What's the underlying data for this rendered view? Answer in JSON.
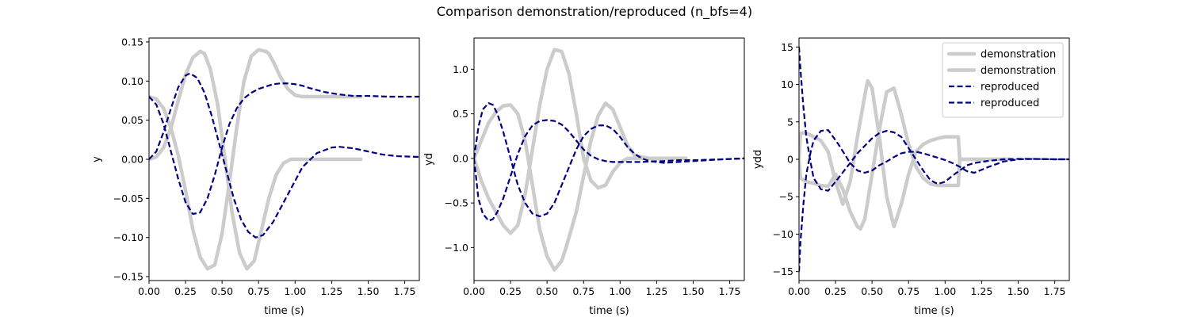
{
  "figure": {
    "title": "Comparison demonstration/reproduced  (n_bfs=4)"
  },
  "colors": {
    "demonstration": "#cccccc",
    "reproduced": "#000080"
  },
  "chart_data": [
    {
      "type": "line",
      "xlabel": "time (s)",
      "ylabel": "y",
      "xlim": [
        0,
        1.85
      ],
      "ylim": [
        -0.155,
        0.155
      ],
      "xticks": [
        0.0,
        0.25,
        0.5,
        0.75,
        1.0,
        1.25,
        1.5,
        1.75
      ],
      "xtick_labels": [
        "0.00",
        "0.25",
        "0.50",
        "0.75",
        "1.00",
        "1.25",
        "1.50",
        "1.75"
      ],
      "yticks": [
        -0.15,
        -0.1,
        -0.05,
        0.0,
        0.05,
        0.1,
        0.15
      ],
      "ytick_labels": [
        "−0.15",
        "−0.10",
        "−0.05",
        "0.00",
        "0.05",
        "0.10",
        "0.15"
      ],
      "series": [
        {
          "name": "demonstration",
          "style": "solid-thick-gray",
          "x": [
            0,
            0.05,
            0.1,
            0.15,
            0.2,
            0.25,
            0.3,
            0.35,
            0.38,
            0.42,
            0.47,
            0.52,
            0.57,
            0.62,
            0.67,
            0.72,
            0.77,
            0.82,
            0.87,
            0.92,
            0.97,
            1.02,
            1.07,
            1.12,
            1.2,
            1.3,
            1.45
          ],
          "y": [
            0,
            0.003,
            0.015,
            0.04,
            0.075,
            0.108,
            0.13,
            0.138,
            0.135,
            0.115,
            0.07,
            0.0,
            -0.07,
            -0.12,
            -0.14,
            -0.13,
            -0.09,
            -0.05,
            -0.02,
            -0.005,
            0.0,
            0.0,
            0.0,
            0.0,
            0.0,
            0.0,
            0.0
          ]
        },
        {
          "name": "demonstration",
          "style": "solid-thick-gray",
          "x": [
            0,
            0.05,
            0.1,
            0.15,
            0.2,
            0.25,
            0.3,
            0.35,
            0.4,
            0.45,
            0.5,
            0.55,
            0.6,
            0.65,
            0.7,
            0.75,
            0.8,
            0.82,
            0.85,
            0.9,
            0.95,
            1.0,
            1.05,
            1.1,
            1.2,
            1.3,
            1.45
          ],
          "y": [
            0.08,
            0.077,
            0.065,
            0.04,
            0.005,
            -0.04,
            -0.09,
            -0.125,
            -0.14,
            -0.135,
            -0.095,
            -0.03,
            0.04,
            0.1,
            0.132,
            0.14,
            0.138,
            0.135,
            0.125,
            0.105,
            0.09,
            0.082,
            0.08,
            0.08,
            0.08,
            0.08,
            0.08
          ]
        },
        {
          "name": "reproduced",
          "style": "dashed-navy",
          "x": [
            0,
            0.05,
            0.1,
            0.15,
            0.2,
            0.25,
            0.28,
            0.33,
            0.38,
            0.43,
            0.48,
            0.53,
            0.58,
            0.63,
            0.68,
            0.73,
            0.78,
            0.85,
            0.95,
            1.05,
            1.15,
            1.25,
            1.3,
            1.4,
            1.5,
            1.6,
            1.7,
            1.85
          ],
          "y": [
            0,
            0.01,
            0.035,
            0.065,
            0.092,
            0.107,
            0.11,
            0.104,
            0.085,
            0.055,
            0.02,
            -0.015,
            -0.05,
            -0.077,
            -0.093,
            -0.1,
            -0.097,
            -0.08,
            -0.045,
            -0.01,
            0.008,
            0.015,
            0.016,
            0.014,
            0.01,
            0.006,
            0.004,
            0.003
          ]
        },
        {
          "name": "reproduced",
          "style": "dashed-navy",
          "x": [
            0,
            0.05,
            0.1,
            0.15,
            0.2,
            0.25,
            0.3,
            0.35,
            0.4,
            0.45,
            0.5,
            0.55,
            0.6,
            0.65,
            0.7,
            0.75,
            0.8,
            0.85,
            0.9,
            0.95,
            1.0,
            1.05,
            1.1,
            1.2,
            1.3,
            1.4,
            1.5,
            1.65,
            1.85
          ],
          "y": [
            0.08,
            0.07,
            0.045,
            0.01,
            -0.025,
            -0.055,
            -0.07,
            -0.068,
            -0.05,
            -0.02,
            0.015,
            0.045,
            0.065,
            0.078,
            0.085,
            0.09,
            0.093,
            0.096,
            0.097,
            0.097,
            0.096,
            0.094,
            0.091,
            0.086,
            0.083,
            0.081,
            0.081,
            0.08,
            0.08
          ]
        }
      ]
    },
    {
      "type": "line",
      "xlabel": "time (s)",
      "ylabel": "yd",
      "xlim": [
        0,
        1.85
      ],
      "ylim": [
        -1.37,
        1.35
      ],
      "xticks": [
        0.0,
        0.25,
        0.5,
        0.75,
        1.0,
        1.25,
        1.5,
        1.75
      ],
      "xtick_labels": [
        "0.00",
        "0.25",
        "0.50",
        "0.75",
        "1.00",
        "1.25",
        "1.50",
        "1.75"
      ],
      "yticks": [
        -1.0,
        -0.5,
        0.0,
        0.5,
        1.0
      ],
      "ytick_labels": [
        "−1.0",
        "−0.5",
        "0.0",
        "0.5",
        "1.0"
      ],
      "series": [
        {
          "name": "demonstration",
          "style": "solid-thick-gray",
          "x": [
            0,
            0.05,
            0.1,
            0.15,
            0.2,
            0.25,
            0.3,
            0.35,
            0.4,
            0.45,
            0.5,
            0.55,
            0.6,
            0.63,
            0.7,
            0.75,
            0.8,
            0.85,
            0.9,
            0.95,
            1.0,
            1.05,
            1.1,
            1.2,
            1.3,
            1.45
          ],
          "y": [
            0,
            0.2,
            0.4,
            0.52,
            0.59,
            0.6,
            0.5,
            0.2,
            -0.3,
            -0.8,
            -1.1,
            -1.25,
            -1.15,
            -1.0,
            -0.6,
            -0.2,
            0.2,
            0.48,
            0.62,
            0.55,
            0.35,
            0.15,
            0.03,
            0.0,
            0.0,
            0.0
          ]
        },
        {
          "name": "demonstration",
          "style": "solid-thick-gray",
          "x": [
            0,
            0.05,
            0.1,
            0.15,
            0.2,
            0.25,
            0.3,
            0.35,
            0.4,
            0.45,
            0.5,
            0.55,
            0.6,
            0.65,
            0.7,
            0.75,
            0.8,
            0.85,
            0.9,
            0.95,
            1.0,
            1.05,
            1.1,
            1.2,
            1.3,
            1.45
          ],
          "y": [
            0,
            -0.25,
            -0.45,
            -0.6,
            -0.75,
            -0.84,
            -0.75,
            -0.4,
            0.1,
            0.6,
            1.0,
            1.22,
            1.2,
            0.95,
            0.5,
            0.0,
            -0.25,
            -0.33,
            -0.3,
            -0.15,
            -0.05,
            0.0,
            0.0,
            0.0,
            0.0,
            0.0
          ]
        },
        {
          "name": "reproduced",
          "style": "dashed-navy",
          "x": [
            0,
            0.03,
            0.06,
            0.1,
            0.13,
            0.16,
            0.2,
            0.25,
            0.3,
            0.35,
            0.4,
            0.45,
            0.5,
            0.55,
            0.6,
            0.65,
            0.7,
            0.75,
            0.8,
            0.85,
            0.9,
            0.95,
            1.0,
            1.05,
            1.1,
            1.15,
            1.2,
            1.3,
            1.4,
            1.5,
            1.6,
            1.7,
            1.85
          ],
          "y": [
            0,
            0.35,
            0.55,
            0.62,
            0.6,
            0.5,
            0.3,
            0.0,
            -0.3,
            -0.5,
            -0.62,
            -0.65,
            -0.62,
            -0.5,
            -0.3,
            -0.1,
            0.1,
            0.25,
            0.33,
            0.37,
            0.37,
            0.33,
            0.24,
            0.13,
            0.05,
            0.0,
            -0.03,
            -0.05,
            -0.04,
            -0.03,
            -0.02,
            -0.01,
            0.0
          ]
        },
        {
          "name": "reproduced",
          "style": "dashed-navy",
          "x": [
            0,
            0.03,
            0.06,
            0.1,
            0.13,
            0.16,
            0.2,
            0.25,
            0.3,
            0.35,
            0.4,
            0.45,
            0.5,
            0.55,
            0.6,
            0.65,
            0.7,
            0.75,
            0.8,
            0.85,
            0.9,
            0.95,
            1.0,
            1.05,
            1.1,
            1.15,
            1.2,
            1.3,
            1.4,
            1.5,
            1.6,
            1.7,
            1.85
          ],
          "y": [
            0,
            -0.45,
            -0.62,
            -0.7,
            -0.68,
            -0.6,
            -0.45,
            -0.2,
            0.05,
            0.25,
            0.37,
            0.42,
            0.43,
            0.42,
            0.38,
            0.3,
            0.2,
            0.1,
            0.03,
            -0.01,
            -0.03,
            -0.04,
            -0.04,
            -0.04,
            -0.04,
            -0.04,
            -0.035,
            -0.03,
            -0.02,
            -0.02,
            -0.015,
            -0.01,
            0.0
          ]
        }
      ]
    },
    {
      "type": "line",
      "xlabel": "time (s)",
      "ylabel": "ydd",
      "xlim": [
        0,
        1.85
      ],
      "ylim": [
        -16.2,
        16.2
      ],
      "xticks": [
        0.0,
        0.25,
        0.5,
        0.75,
        1.0,
        1.25,
        1.5,
        1.75
      ],
      "xtick_labels": [
        "0.00",
        "0.25",
        "0.50",
        "0.75",
        "1.00",
        "1.25",
        "1.50",
        "1.75"
      ],
      "yticks": [
        -15,
        -10,
        -5,
        0,
        5,
        10,
        15
      ],
      "ytick_labels": [
        "−15",
        "−10",
        "−5",
        "0",
        "5",
        "10",
        "15"
      ],
      "legend": {
        "location": "upper right",
        "entries": [
          {
            "label": "demonstration",
            "style": "solid-thick-gray"
          },
          {
            "label": "demonstration",
            "style": "solid-thick-gray"
          },
          {
            "label": "reproduced",
            "style": "dashed-navy"
          },
          {
            "label": "reproduced",
            "style": "dashed-navy"
          }
        ]
      },
      "series": [
        {
          "name": "demonstration",
          "style": "solid-thick-gray",
          "x": [
            0,
            0.01,
            0.05,
            0.1,
            0.15,
            0.2,
            0.25,
            0.3,
            0.35,
            0.4,
            0.42,
            0.45,
            0.5,
            0.55,
            0.6,
            0.65,
            0.7,
            0.75,
            0.8,
            0.85,
            0.9,
            0.95,
            1.0,
            1.05,
            1.09,
            1.1,
            1.15,
            1.2,
            1.3,
            1.45
          ],
          "y": [
            0,
            -2.5,
            -3.0,
            -3.2,
            -3.5,
            -3.6,
            -2.0,
            -4.0,
            -7.0,
            -9.0,
            -9.3,
            -8.0,
            -2.0,
            4.0,
            9.0,
            9.5,
            6.0,
            2.0,
            -1.0,
            -2.5,
            -3.3,
            -3.5,
            -3.5,
            -3.5,
            -3.5,
            0.0,
            0.0,
            0.0,
            0.0,
            0.0
          ]
        },
        {
          "name": "demonstration",
          "style": "solid-thick-gray",
          "x": [
            0,
            0.01,
            0.05,
            0.1,
            0.15,
            0.2,
            0.25,
            0.3,
            0.35,
            0.4,
            0.45,
            0.47,
            0.5,
            0.55,
            0.6,
            0.65,
            0.7,
            0.75,
            0.8,
            0.85,
            0.9,
            0.95,
            1.0,
            1.05,
            1.09,
            1.1,
            1.15,
            1.2,
            1.3,
            1.45
          ],
          "y": [
            0,
            3.5,
            3.5,
            3.0,
            2.5,
            1.0,
            -3.0,
            -6.0,
            -3.0,
            3.0,
            8.5,
            10.5,
            9.5,
            3.0,
            -5.0,
            -9.0,
            -6.0,
            -2.0,
            1.0,
            2.0,
            2.5,
            2.8,
            3.0,
            3.0,
            3.0,
            0.0,
            0.0,
            0.0,
            0.0,
            0.0
          ]
        },
        {
          "name": "reproduced",
          "style": "dashed-navy",
          "x": [
            0,
            0.01,
            0.03,
            0.05,
            0.08,
            0.1,
            0.15,
            0.2,
            0.27,
            0.35,
            0.4,
            0.45,
            0.5,
            0.55,
            0.6,
            0.65,
            0.7,
            0.75,
            0.8,
            0.85,
            0.9,
            0.95,
            1.0,
            1.05,
            1.1,
            1.15,
            1.2,
            1.3,
            1.4,
            1.5,
            1.6,
            1.75,
            1.85
          ],
          "y": [
            15.0,
            12.0,
            7.0,
            3.0,
            -0.5,
            -2.5,
            -4.0,
            -4.2,
            -2.5,
            -0.5,
            0.8,
            1.8,
            2.8,
            3.5,
            3.8,
            3.6,
            3.0,
            1.5,
            0.0,
            -1.5,
            -2.8,
            -3.3,
            -3.0,
            -2.2,
            -1.5,
            -0.8,
            -0.5,
            -0.2,
            0.0,
            0.05,
            0.05,
            0.0,
            0.0
          ]
        },
        {
          "name": "reproduced",
          "style": "dashed-navy",
          "x": [
            0,
            0.01,
            0.03,
            0.05,
            0.08,
            0.1,
            0.15,
            0.2,
            0.27,
            0.35,
            0.4,
            0.45,
            0.5,
            0.55,
            0.6,
            0.65,
            0.7,
            0.75,
            0.8,
            0.85,
            0.9,
            0.95,
            1.0,
            1.05,
            1.1,
            1.15,
            1.2,
            1.3,
            1.4,
            1.5,
            1.6,
            1.75,
            1.85
          ],
          "y": [
            -15.0,
            -11.0,
            -6.0,
            -2.0,
            1.0,
            2.5,
            3.8,
            3.9,
            2.0,
            -0.5,
            -1.5,
            -1.8,
            -1.5,
            -0.8,
            -0.3,
            0.3,
            0.8,
            1.0,
            1.0,
            0.8,
            0.5,
            0.2,
            -0.1,
            -0.5,
            -1.0,
            -1.6,
            -1.8,
            -1.0,
            -0.3,
            0.0,
            0.05,
            0.0,
            0.0
          ]
        }
      ]
    }
  ]
}
